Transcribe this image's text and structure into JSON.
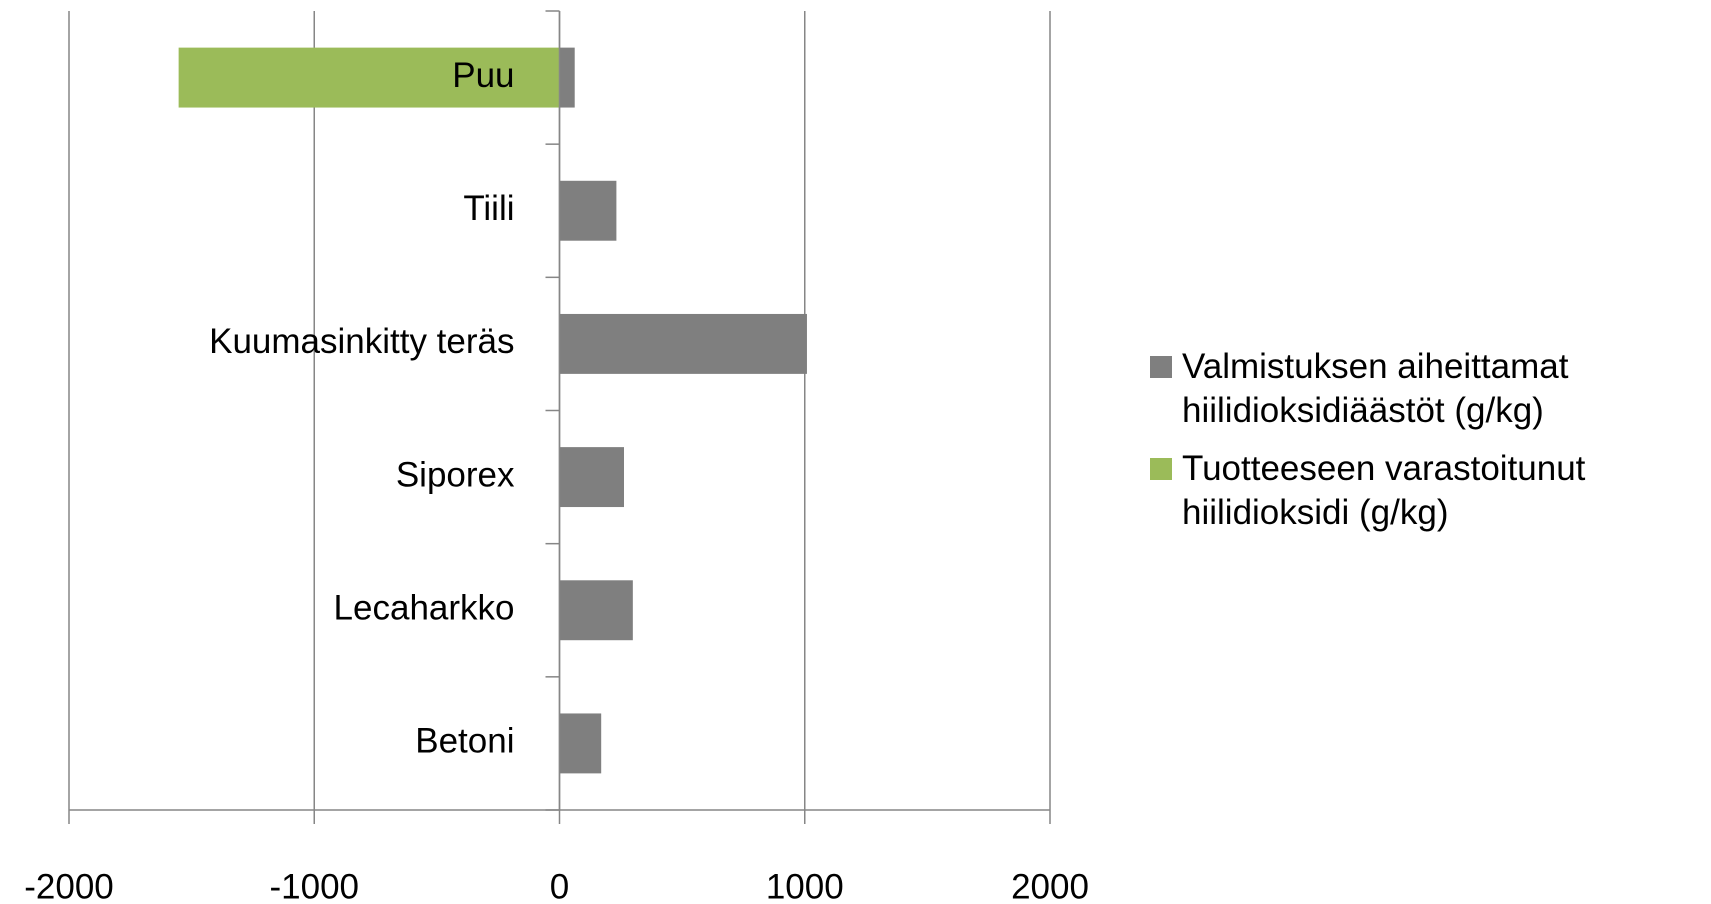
{
  "chart_data": {
    "type": "bar",
    "orientation": "horizontal",
    "stacked": true,
    "categories": [
      "Puu",
      "Tiili",
      "Kuumasinkitty teräs",
      "Siporex",
      "Lecaharkko",
      "Betoni"
    ],
    "series": [
      {
        "name": "Valmistuksen aiheittamat hiilidioksidiäästöt (g/kg)",
        "color": "#7f7f7f",
        "values": [
          62,
          232,
          1009,
          263,
          299,
          170
        ]
      },
      {
        "name": "Tuotteeseen varastoitunut hiilidioksidi (g/kg)",
        "color": "#9bbb59",
        "values": [
          -1553,
          null,
          null,
          null,
          null,
          null
        ]
      }
    ],
    "xlim": [
      -2000,
      2000
    ],
    "xticks": [
      -2000,
      -1000,
      0,
      1000,
      2000
    ],
    "grid": true,
    "legend": "right"
  }
}
